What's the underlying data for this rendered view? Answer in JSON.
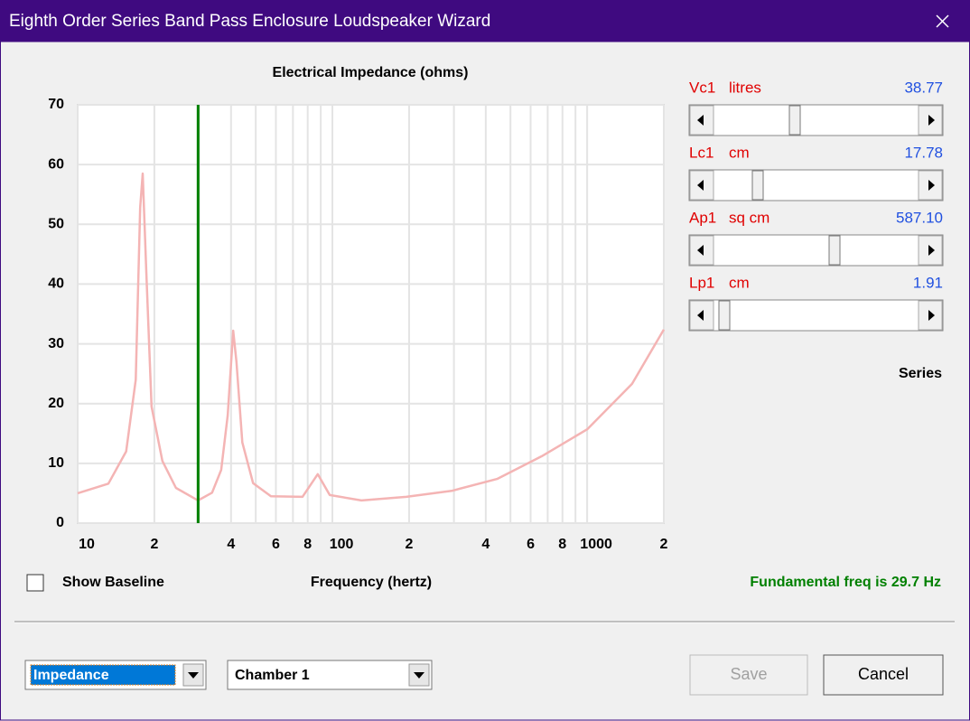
{
  "window": {
    "title": "Eighth Order Series Band Pass Enclosure Loudspeaker Wizard"
  },
  "chart_data": {
    "type": "line",
    "title": "Electrical Impedance (ohms)",
    "x_label": "Frequency (hertz)",
    "xscale": "log",
    "xlim": [
      10,
      2000
    ],
    "ylim": [
      0,
      70
    ],
    "xticks": [
      10,
      {
        "value": 20,
        "label": "2"
      },
      {
        "value": 40,
        "label": "4"
      },
      {
        "value": 60,
        "label": "6"
      },
      {
        "value": 80,
        "label": "8"
      },
      100,
      {
        "value": 200,
        "label": "2"
      },
      {
        "value": 400,
        "label": "4"
      },
      {
        "value": 600,
        "label": "6"
      },
      {
        "value": 800,
        "label": "8"
      },
      1000,
      {
        "value": 2000,
        "label": "2"
      }
    ],
    "xgrid_minor": [
      30,
      50,
      70,
      90,
      300,
      500,
      700,
      900
    ],
    "yticks": [
      0,
      10,
      20,
      30,
      40,
      50,
      60,
      70
    ],
    "grid": true,
    "color": "#f4b4b4",
    "x": [
      10,
      13.2,
      15.5,
      16.9,
      17.6,
      18.0,
      18.6,
      19.5,
      21.5,
      24.3,
      29.7,
      33.7,
      36.6,
      38.8,
      40.8,
      42.0,
      44.3,
      48.8,
      57.4,
      76.3,
      87.6,
      97.6,
      130,
      195,
      294,
      443,
      664,
      1000,
      1500,
      2000
    ],
    "values": [
      5.0,
      6.6,
      12,
      24,
      52.8,
      58.5,
      42,
      19.5,
      10.4,
      5.9,
      3.8,
      5.1,
      8.9,
      18,
      32.2,
      27,
      13.5,
      6.7,
      4.5,
      4.4,
      8.2,
      4.7,
      3.8,
      4.4,
      5.4,
      7.4,
      11.2,
      15.7,
      23.3,
      32.4
    ],
    "vline": {
      "x": 29.7,
      "color": "#008000"
    }
  },
  "sliders": [
    {
      "name": "Vc1",
      "unit": "litres",
      "value": "38.77"
    },
    {
      "name": "Lc1",
      "unit": "cm",
      "value": "17.78"
    },
    {
      "name": "Ap1",
      "unit": "sq cm",
      "value": "587.10"
    },
    {
      "name": "Lp1",
      "unit": "cm",
      "value": "1.91"
    }
  ],
  "mode_label": "Series",
  "show_baseline": "Show Baseline",
  "fundamental": "Fundamental freq is 29.7 Hz",
  "view_select": "Impedance",
  "chamber_select": "Chamber 1",
  "buttons": {
    "save": "Save",
    "cancel": "Cancel"
  }
}
